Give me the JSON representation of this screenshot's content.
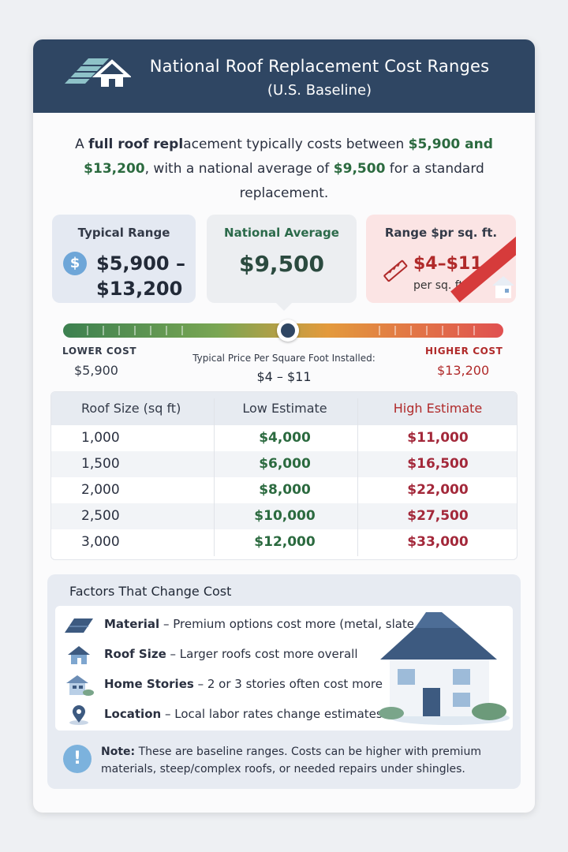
{
  "header": {
    "title": "National Roof Replacement Cost Ranges",
    "subtitle": "(U.S. Baseline)",
    "logo_icon": "roof-house-icon"
  },
  "intro": {
    "p1": "A ",
    "p2": "full roof repl",
    "p3": "acement typically costs between ",
    "p4": "$5,900 and $13,200",
    "p5": ", with a national average of ",
    "p6": "$9,500",
    "p7": " for a standard replacement."
  },
  "stats": {
    "typical": {
      "label": "Typical Range",
      "icon": "$",
      "value_line1": "$5,900 –",
      "value_line2": "$13,200"
    },
    "average": {
      "label": "National Average",
      "value": "$9,500"
    },
    "per_sqft": {
      "label": "Range $pr sq. ft.",
      "value": "$4–$11",
      "sub": "per sq. ft."
    }
  },
  "scale": {
    "low_label": "LOWER COST",
    "low_value": "$5,900",
    "high_label": "HIGHER COST",
    "high_value": "$13,200",
    "mid_label": "Typical Price Per Square Foot Installed:",
    "mid_value": "$4 – $11",
    "marker_fraction": 0.51,
    "colors": {
      "start": "#3c8050",
      "mid": "#e39a3c",
      "end": "#e05050"
    }
  },
  "table": {
    "headers": [
      "Roof Size (sq ft)",
      "Low Estimate",
      "High Estimate"
    ],
    "rows": [
      [
        "1,000",
        "$4,000",
        "$11,000"
      ],
      [
        "1,500",
        "$6,000",
        "$16,500"
      ],
      [
        "2,000",
        "$8,000",
        "$22,000"
      ],
      [
        "2,500",
        "$10,000",
        "$27,500"
      ],
      [
        "3,000",
        "$12,000",
        "$33,000"
      ]
    ]
  },
  "factors": {
    "title": "Factors That Change Cost",
    "items": [
      {
        "icon": "shingle-icon",
        "name": "Material",
        "desc": " – Premium options cost more (metal, slate, tile)."
      },
      {
        "icon": "house-icon",
        "name": "Roof Size",
        "desc": " – Larger roofs cost more overall"
      },
      {
        "icon": "two-story-house-icon",
        "name": "Home Stories",
        "desc": " – 2 or 3 stories often cost more"
      },
      {
        "icon": "location-pin-icon",
        "name": "Location",
        "desc": " – Local labor rates change estimates."
      }
    ]
  },
  "note": {
    "icon": "!",
    "label": "Note:",
    "text": " These are baseline ranges. Costs can be higher with premium materials, steep/complex roofs, or needed repairs under shingles."
  }
}
